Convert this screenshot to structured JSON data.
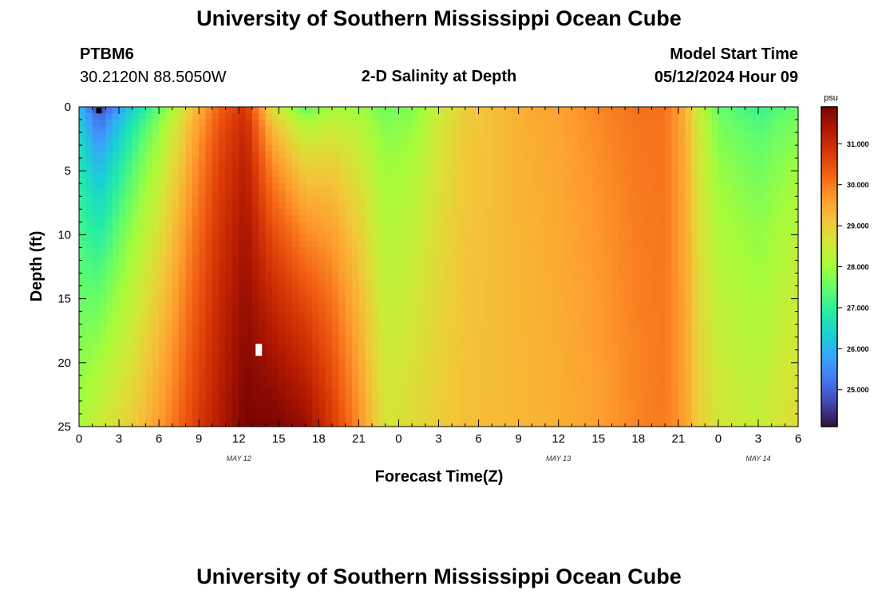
{
  "page_title": "University of Southern Mississippi Ocean Cube",
  "footer_title": "University of Southern Mississippi Ocean Cube",
  "station": {
    "id": "PTBM6",
    "coords": "30.2120N  88.5050W"
  },
  "model": {
    "label": "Model Start Time",
    "time": "05/12/2024 Hour 09"
  },
  "chart_data": {
    "type": "heatmap",
    "title": "2-D Salinity at Depth",
    "xlabel": "Forecast Time(Z)",
    "ylabel": "Depth (ft)",
    "colorbar_unit": "psu",
    "x_tick_labels": [
      "0",
      "3",
      "6",
      "9",
      "12",
      "15",
      "18",
      "21",
      "0",
      "3",
      "6",
      "9",
      "12",
      "15",
      "18",
      "21",
      "0",
      "3",
      "6"
    ],
    "x_range_hours": [
      0,
      54
    ],
    "date_labels": [
      {
        "label": "MAY 12",
        "hour": 12
      },
      {
        "label": "MAY 13",
        "hour": 36
      },
      {
        "label": "MAY 14",
        "hour": 51
      }
    ],
    "y_tick_labels": [
      "0",
      "5",
      "10",
      "15",
      "20",
      "25"
    ],
    "y_range_ft": [
      0,
      25
    ],
    "colorbar_ticks": [
      "25.000",
      "26.000",
      "27.000",
      "28.000",
      "29.000",
      "30.000",
      "31.000"
    ],
    "color_range_psu": [
      24.1,
      31.9
    ],
    "colormap": [
      "#30123b",
      "#4145ab",
      "#4675ed",
      "#39a2fc",
      "#1bcfd4",
      "#24eca6",
      "#61fc6c",
      "#a4fc3b",
      "#d1e835",
      "#f3c63a",
      "#fe9b2d",
      "#f36315",
      "#d93806",
      "#b11901",
      "#7a0403"
    ],
    "profile_columns": [
      {
        "hour": 0,
        "surface": 26.0,
        "bottom": 28.0
      },
      {
        "hour": 1.5,
        "surface": 24.4,
        "bottom": 28.5
      },
      {
        "hour": 4,
        "surface": 26.2,
        "bottom": 29.0
      },
      {
        "hour": 6.5,
        "surface": 27.6,
        "bottom": 29.8
      },
      {
        "hour": 8.5,
        "surface": 29.0,
        "bottom": 30.6
      },
      {
        "hour": 10.5,
        "surface": 30.2,
        "bottom": 31.3
      },
      {
        "hour": 12.5,
        "surface": 30.8,
        "bottom": 31.9
      },
      {
        "hour": 14.5,
        "surface": 28.5,
        "bottom": 31.9
      },
      {
        "hour": 17,
        "surface": 27.2,
        "bottom": 31.6
      },
      {
        "hour": 19,
        "surface": 27.8,
        "bottom": 30.8
      },
      {
        "hour": 21,
        "surface": 27.8,
        "bottom": 29.8
      },
      {
        "hour": 23,
        "surface": 27.5,
        "bottom": 28.6
      },
      {
        "hour": 25,
        "surface": 27.6,
        "bottom": 28.8
      },
      {
        "hour": 27,
        "surface": 28.4,
        "bottom": 29.0
      },
      {
        "hour": 29,
        "surface": 29.0,
        "bottom": 29.2
      },
      {
        "hour": 33,
        "surface": 29.4,
        "bottom": 29.3
      },
      {
        "hour": 36,
        "surface": 29.6,
        "bottom": 29.4
      },
      {
        "hour": 39,
        "surface": 29.9,
        "bottom": 29.6
      },
      {
        "hour": 42,
        "surface": 30.1,
        "bottom": 29.9
      },
      {
        "hour": 44,
        "surface": 30.1,
        "bottom": 30.0
      },
      {
        "hour": 45.5,
        "surface": 29.4,
        "bottom": 29.6
      },
      {
        "hour": 46.5,
        "surface": 28.4,
        "bottom": 29.0
      },
      {
        "hour": 48,
        "surface": 27.4,
        "bottom": 28.6
      },
      {
        "hour": 51,
        "surface": 27.0,
        "bottom": 28.4
      },
      {
        "hour": 54,
        "surface": 27.4,
        "bottom": 28.8
      }
    ],
    "markers": [
      {
        "name": "dark-marker",
        "hour": 1.5,
        "depth_ft": 0.3,
        "color": "#000000"
      },
      {
        "name": "white-marker",
        "hour": 13.5,
        "depth_ft": 19.0,
        "color": "#ffffff"
      }
    ]
  }
}
